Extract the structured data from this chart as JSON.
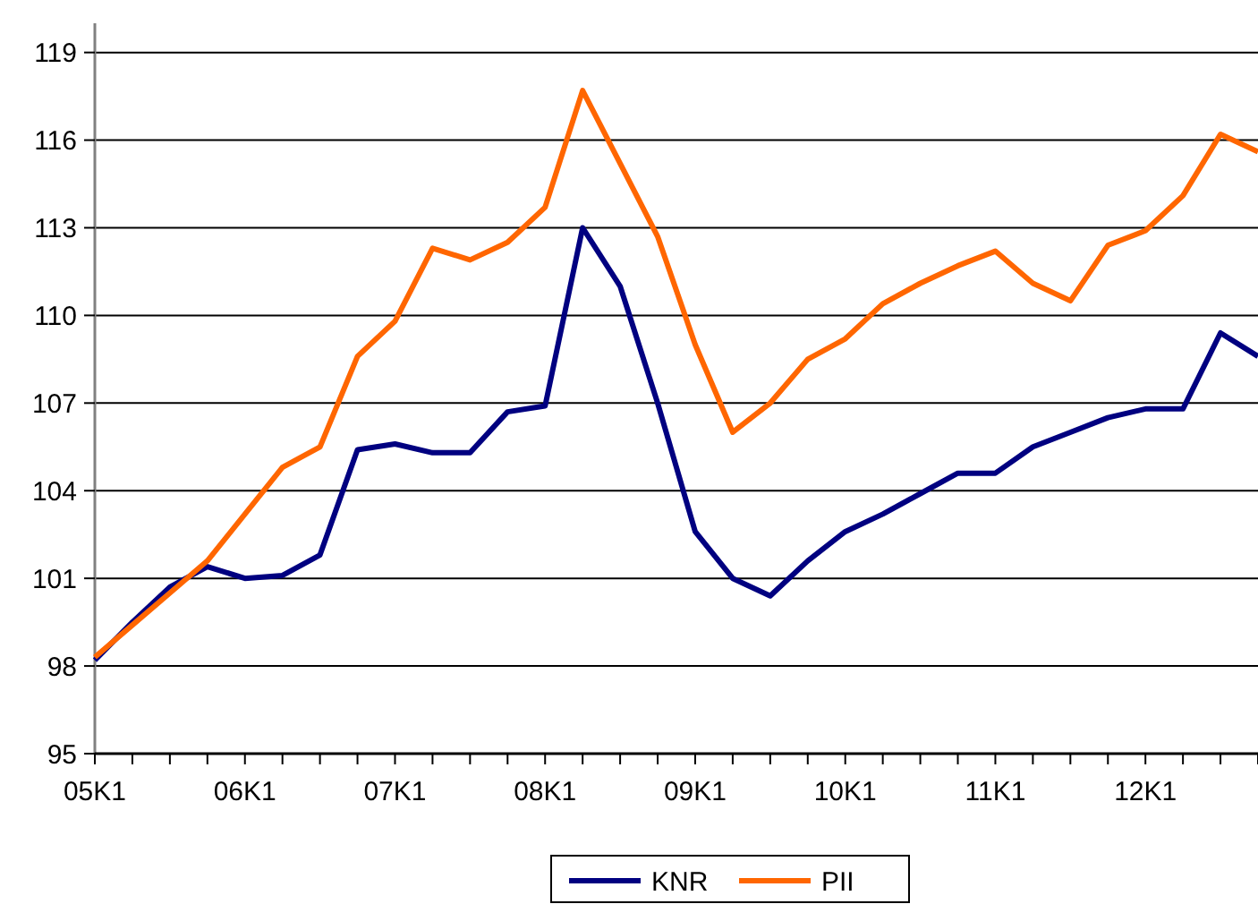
{
  "chart_data": {
    "type": "line",
    "categories": [
      "05K1",
      null,
      null,
      null,
      "06K1",
      null,
      null,
      null,
      "07K1",
      null,
      null,
      null,
      "08K1",
      null,
      null,
      null,
      "09K1",
      null,
      null,
      null,
      "10K1",
      null,
      null,
      null,
      "11K1",
      null,
      null,
      null,
      "12K1",
      null,
      null,
      null
    ],
    "series": [
      {
        "name": "KNR",
        "color": "#000080",
        "values": [
          98.2,
          99.5,
          100.7,
          101.4,
          101.0,
          101.1,
          101.8,
          105.4,
          105.6,
          105.3,
          105.3,
          106.7,
          106.9,
          113.0,
          111.0,
          107.0,
          102.6,
          101.0,
          100.4,
          101.6,
          102.6,
          103.2,
          103.9,
          104.6,
          104.6,
          105.5,
          106.0,
          106.5,
          106.8,
          106.8,
          109.4,
          108.6
        ]
      },
      {
        "name": "PII",
        "color": "#ff6600",
        "values": [
          98.3,
          99.4,
          100.5,
          101.6,
          103.2,
          104.8,
          105.5,
          108.6,
          109.8,
          112.3,
          111.9,
          112.5,
          113.7,
          117.7,
          115.2,
          112.7,
          109.0,
          106.0,
          107.0,
          108.5,
          109.2,
          110.4,
          111.1,
          111.7,
          112.2,
          111.1,
          110.5,
          112.4,
          112.9,
          114.1,
          116.2,
          115.6
        ]
      }
    ],
    "ylim": [
      95,
      120
    ],
    "yticks": [
      95,
      98,
      101,
      104,
      107,
      110,
      113,
      116,
      119
    ],
    "grid": "y",
    "legend": "bottom",
    "marker": "none",
    "line_style": "solid"
  }
}
